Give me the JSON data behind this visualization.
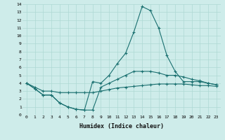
{
  "xlabel": "Humidex (Indice chaleur)",
  "background_color": "#ceecea",
  "grid_color": "#aed8d4",
  "line_color": "#1a7070",
  "xlim": [
    -0.5,
    23.5
  ],
  "ylim": [
    0,
    14
  ],
  "xticks": [
    0,
    1,
    2,
    3,
    4,
    5,
    6,
    7,
    8,
    9,
    10,
    11,
    12,
    13,
    14,
    15,
    16,
    17,
    18,
    19,
    20,
    21,
    22,
    23
  ],
  "yticks": [
    0,
    1,
    2,
    3,
    4,
    5,
    6,
    7,
    8,
    9,
    10,
    11,
    12,
    13,
    14
  ],
  "series": [
    [
      4.0,
      3.3,
      2.5,
      2.5,
      1.5,
      1.0,
      0.7,
      0.6,
      4.2,
      4.0,
      5.0,
      6.5,
      7.8,
      10.5,
      13.7,
      13.2,
      11.0,
      7.5,
      5.5,
      4.2,
      4.2,
      4.2,
      4.0,
      3.8
    ],
    [
      4.0,
      3.3,
      2.5,
      2.5,
      1.5,
      1.0,
      0.7,
      0.6,
      0.6,
      3.5,
      4.0,
      4.5,
      5.0,
      5.5,
      5.5,
      5.5,
      5.3,
      5.0,
      5.0,
      4.8,
      4.5,
      4.3,
      4.0,
      3.8
    ],
    [
      4.0,
      3.5,
      3.0,
      3.0,
      2.8,
      2.8,
      2.8,
      2.8,
      2.8,
      3.0,
      3.2,
      3.4,
      3.5,
      3.6,
      3.7,
      3.8,
      3.9,
      3.9,
      3.9,
      3.9,
      3.8,
      3.7,
      3.7,
      3.6
    ]
  ]
}
